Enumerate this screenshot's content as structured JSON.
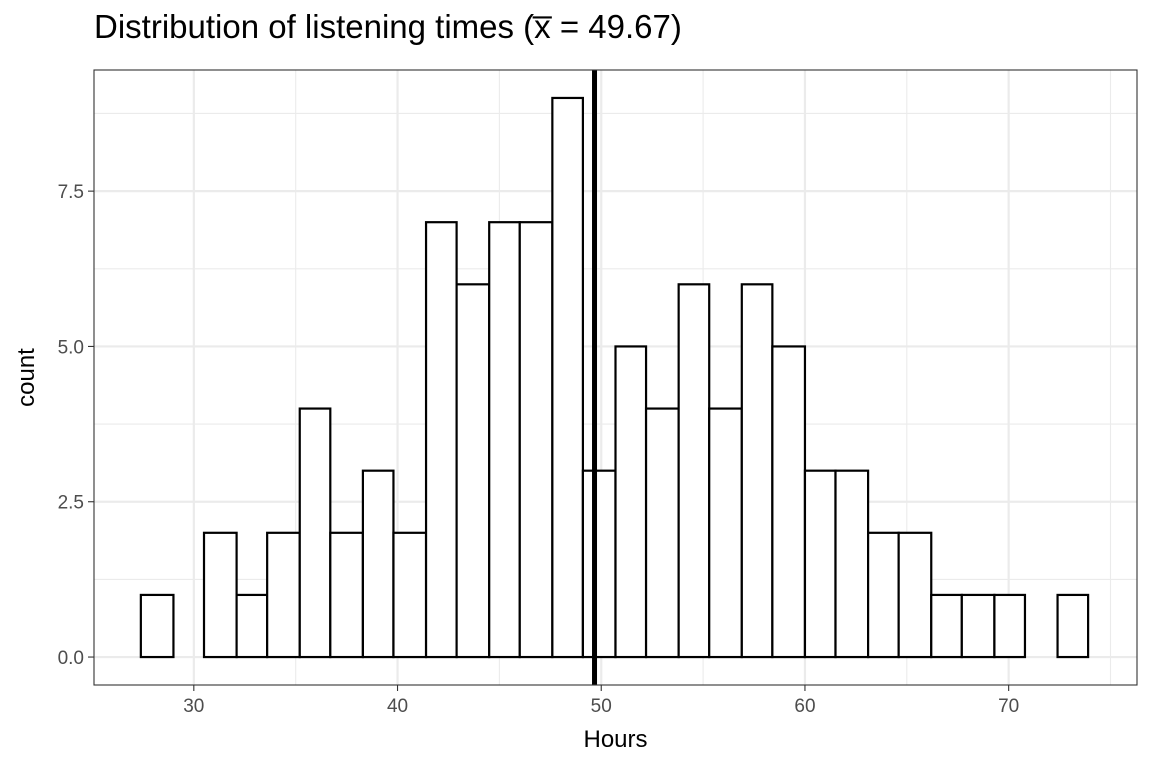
{
  "chart_data": {
    "type": "bar",
    "title": "Distribution of listening times (x̅ = 49.67)",
    "xlabel": "Hours",
    "ylabel": "count",
    "xlim": [
      25.1,
      76.3
    ],
    "ylim": [
      -0.45,
      9.45
    ],
    "x_ticks": [
      {
        "value": 30,
        "label": "30"
      },
      {
        "value": 40,
        "label": "40"
      },
      {
        "value": 50,
        "label": "50"
      },
      {
        "value": 60,
        "label": "60"
      },
      {
        "value": 70,
        "label": "70"
      }
    ],
    "y_ticks": [
      {
        "value": 0,
        "label": "0.0"
      },
      {
        "value": 2.5,
        "label": "2.5"
      },
      {
        "value": 5,
        "label": "5.0"
      },
      {
        "value": 7.5,
        "label": "7.5"
      }
    ],
    "bin_edges": [
      27.4,
      29.0,
      30.5,
      32.1,
      33.6,
      35.2,
      36.7,
      38.3,
      39.8,
      41.4,
      42.9,
      44.5,
      46.0,
      47.6,
      49.1,
      50.7,
      52.2,
      53.8,
      55.3,
      56.9,
      58.4,
      60.0,
      61.5,
      63.1,
      64.6,
      66.2,
      67.7,
      69.3,
      70.8,
      72.4,
      73.9
    ],
    "values": [
      1,
      0,
      2,
      1,
      2,
      4,
      2,
      3,
      2,
      7,
      6,
      7,
      7,
      9,
      3,
      5,
      4,
      6,
      4,
      6,
      5,
      3,
      3,
      2,
      2,
      1,
      1,
      1,
      0,
      1
    ],
    "mean_line": 49.67,
    "grid": true
  }
}
